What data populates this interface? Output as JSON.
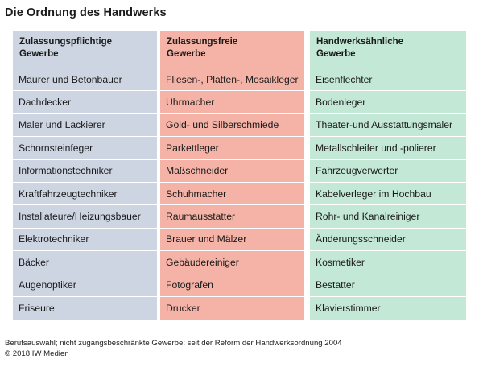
{
  "title": "Die Ordnung des Handwerks",
  "colors": {
    "col1": "#cdd5e2",
    "col2": "#f4b3a6",
    "col3": "#c3e8d6"
  },
  "columns": [
    {
      "header_line1": "Zulassungspflichtige",
      "header_line2": "Gewerbe",
      "items": [
        "Maurer und Betonbauer",
        "Dachdecker",
        "Maler und Lackierer",
        "Schornsteinfeger",
        "Informationstechniker",
        "Kraftfahrzeugtechniker",
        "Installateure/Heizungsbauer",
        "Elektrotechniker",
        "Bäcker",
        "Augenoptiker",
        "Friseure"
      ]
    },
    {
      "header_line1": "Zulassungsfreie",
      "header_line2": "Gewerbe",
      "items": [
        "Fliesen-, Platten-, Mosaikleger",
        "Uhrmacher",
        "Gold- und Silberschmiede",
        "Parkettleger",
        "Maßschneider",
        "Schuhmacher",
        "Raumausstatter",
        "Brauer und Mälzer",
        "Gebäudereiniger",
        "Fotografen",
        "Drucker"
      ]
    },
    {
      "header_line1": "Handwerksähnliche",
      "header_line2": "Gewerbe",
      "items": [
        "Eisenflechter",
        "Bodenleger",
        "Theater-und Ausstattungsmaler",
        "Metallschleifer und -polierer",
        "Fahrzeugverwerter",
        "Kabelverleger im Hochbau",
        "Rohr- und Kanalreiniger",
        "Änderungsschneider",
        "Kosmetiker",
        "Bestatter",
        "Klavierstimmer"
      ]
    }
  ],
  "footer": {
    "line1": "Berufsauswahl; nicht zugangsbeschränkte Gewerbe: seit der Reform der Handwerksordnung 2004",
    "line2": "© 2018 IW Medien"
  }
}
